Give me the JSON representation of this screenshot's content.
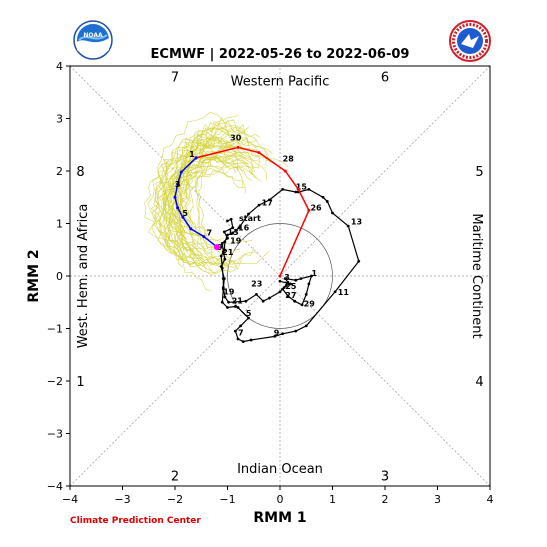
{
  "logos": {
    "left": "NOAA",
    "right": "NATIONAL WEATHER SERVICE"
  },
  "footer": "Climate Prediction Center",
  "chart_data": {
    "type": "line",
    "title": "ECMWF | 2022-05-26 to 2022-06-09",
    "xlabel": "RMM 1",
    "ylabel": "RMM 2",
    "xlim": [
      -4,
      4
    ],
    "ylim": [
      -4,
      4
    ],
    "xticks": [
      -4,
      -3,
      -2,
      -1,
      0,
      1,
      2,
      3,
      4
    ],
    "yticks": [
      -4,
      -3,
      -2,
      -1,
      0,
      1,
      2,
      3,
      4
    ],
    "grid": false,
    "unit_circle_radius": 1,
    "phase_numbers": [
      {
        "label": "1",
        "x": -3.8,
        "y": -2
      },
      {
        "label": "2",
        "x": -2,
        "y": -3.8
      },
      {
        "label": "3",
        "x": 2,
        "y": -3.8
      },
      {
        "label": "4",
        "x": 3.8,
        "y": -2
      },
      {
        "label": "5",
        "x": 3.8,
        "y": 2
      },
      {
        "label": "6",
        "x": 2,
        "y": 3.8
      },
      {
        "label": "7",
        "x": -2,
        "y": 3.8
      },
      {
        "label": "8",
        "x": -3.8,
        "y": 2
      }
    ],
    "region_labels": {
      "top": "Western Pacific",
      "bottom": "Indian Ocean",
      "left": "West. Hem. and Africa",
      "right": "Maritime Continent"
    },
    "observed": {
      "color": "#000000",
      "points": [
        [
          -1.0,
          1.05
        ],
        [
          -0.93,
          1.08
        ],
        [
          -0.9,
          0.92
        ],
        [
          -1.06,
          0.84
        ],
        [
          -1.0,
          0.72
        ],
        [
          -1.1,
          0.62
        ],
        [
          -1.08,
          0.46
        ],
        [
          -1.05,
          0.32
        ],
        [
          -1.12,
          0.18
        ],
        [
          -1.06,
          -0.05
        ],
        [
          -1.08,
          -0.25
        ],
        [
          -1.1,
          -0.5
        ],
        [
          -1.0,
          -0.6
        ],
        [
          -0.85,
          -0.58
        ],
        [
          -0.8,
          -0.6
        ],
        [
          -0.6,
          -0.8
        ],
        [
          -0.75,
          -0.95
        ],
        [
          -0.85,
          -1.05
        ],
        [
          -0.8,
          -1.2
        ],
        [
          -0.7,
          -1.25
        ],
        [
          -0.55,
          -1.22
        ],
        [
          -0.1,
          -1.15
        ],
        [
          0.05,
          -1.1
        ],
        [
          0.3,
          -1.05
        ],
        [
          0.5,
          -0.95
        ],
        [
          1.05,
          -0.3
        ],
        [
          1.5,
          0.28
        ],
        [
          1.3,
          0.95
        ],
        [
          1.0,
          1.2
        ],
        [
          0.9,
          1.42
        ],
        [
          0.82,
          1.5
        ],
        [
          0.55,
          1.65
        ],
        [
          0.35,
          1.6
        ],
        [
          0.3,
          1.6
        ],
        [
          0.05,
          1.65
        ],
        [
          -0.2,
          1.45
        ],
        [
          -0.4,
          1.35
        ],
        [
          -0.6,
          1.18
        ],
        [
          -0.78,
          0.92
        ],
        [
          -0.9,
          0.82
        ],
        [
          -1.0,
          0.78
        ],
        [
          -1.05,
          0.65
        ],
        [
          -1.06,
          0.5
        ],
        [
          -1.12,
          0.38
        ],
        [
          -1.1,
          0.15
        ],
        [
          -1.08,
          -0.05
        ],
        [
          -1.08,
          -0.22
        ],
        [
          -1.05,
          -0.4
        ],
        [
          -0.98,
          -0.5
        ],
        [
          -0.65,
          -0.48
        ],
        [
          -0.45,
          -0.35
        ],
        [
          -0.32,
          -0.48
        ],
        [
          -0.2,
          -0.42
        ],
        [
          0.0,
          -0.3
        ],
        [
          0.08,
          -0.22
        ],
        [
          0.15,
          -0.12
        ],
        [
          0.1,
          -0.05
        ],
        [
          0.3,
          -0.08
        ],
        [
          0.4,
          -0.05
        ],
        [
          0.6,
          0.0
        ],
        [
          0.55,
          -0.15
        ],
        [
          0.5,
          -0.35
        ],
        [
          0.42,
          -0.55
        ],
        [
          0.28,
          -0.48
        ],
        [
          0.15,
          -0.38
        ],
        [
          0.05,
          -0.25
        ],
        [
          0.12,
          -0.18
        ],
        [
          0.2,
          -0.15
        ],
        [
          0.0,
          -0.1
        ]
      ],
      "day_labels": [
        {
          "label": "start",
          "x": -0.78,
          "y": 1.05
        },
        {
          "label": "16",
          "x": -0.8,
          "y": 0.87
        },
        {
          "label": "17",
          "x": -0.35,
          "y": 1.34
        },
        {
          "label": "15",
          "x": 0.3,
          "y": 1.65
        },
        {
          "label": "13",
          "x": 1.35,
          "y": 0.98
        },
        {
          "label": "11",
          "x": 1.1,
          "y": -0.36
        },
        {
          "label": "9",
          "x": -0.12,
          "y": -1.13
        },
        {
          "label": "7",
          "x": -0.8,
          "y": -1.13
        },
        {
          "label": "5",
          "x": -0.65,
          "y": -0.76
        },
        {
          "label": "21",
          "x": -0.92,
          "y": -0.52
        },
        {
          "label": "19",
          "x": -1.08,
          "y": -0.35
        },
        {
          "label": "23",
          "x": -0.55,
          "y": -0.2
        },
        {
          "label": "25",
          "x": 0.1,
          "y": -0.25
        },
        {
          "label": "27",
          "x": 0.1,
          "y": -0.42
        },
        {
          "label": "29",
          "x": 0.45,
          "y": -0.58
        },
        {
          "label": "1",
          "x": 0.6,
          "y": 0.0
        },
        {
          "label": "3",
          "x": 0.08,
          "y": -0.08
        },
        {
          "label": "13",
          "x": -1.0,
          "y": 0.78
        },
        {
          "label": "19",
          "x": -0.95,
          "y": 0.62
        },
        {
          "label": "21",
          "x": -1.1,
          "y": 0.4
        },
        {
          "label": "9",
          "x": -1.2,
          "y": 0.5
        }
      ]
    },
    "forecast_mean": {
      "color": "#ff0000",
      "points": [
        [
          0.0,
          0.0
        ],
        [
          0.55,
          1.25
        ],
        [
          0.35,
          1.65
        ],
        [
          0.1,
          2.0
        ],
        [
          -0.4,
          2.35
        ],
        [
          -0.8,
          2.45
        ],
        [
          -1.6,
          2.25
        ]
      ],
      "day_labels": [
        {
          "label": "26",
          "x": 0.58,
          "y": 1.25
        },
        {
          "label": "28",
          "x": 0.05,
          "y": 2.18
        },
        {
          "label": "30",
          "x": -0.95,
          "y": 2.58
        }
      ]
    },
    "forecast_mean_next": {
      "color": "#0000ff",
      "points": [
        [
          -1.6,
          2.25
        ],
        [
          -1.88,
          1.98
        ],
        [
          -1.95,
          1.75
        ],
        [
          -2.0,
          1.5
        ],
        [
          -1.95,
          1.3
        ],
        [
          -1.85,
          1.12
        ],
        [
          -1.7,
          0.9
        ],
        [
          -1.45,
          0.75
        ],
        [
          -1.2,
          0.55
        ]
      ],
      "day_labels": [
        {
          "label": "1",
          "x": -1.73,
          "y": 2.27
        },
        {
          "label": "3",
          "x": -2.0,
          "y": 1.7
        },
        {
          "label": "5",
          "x": -1.86,
          "y": 1.14
        },
        {
          "label": "7",
          "x": -1.4,
          "y": 0.77
        }
      ]
    },
    "forecast_end_marker": {
      "color": "#ff00ff",
      "x": -1.2,
      "y": 0.55
    },
    "ensemble": {
      "color": "#d4d442",
      "member_count": 50,
      "envelope_center": [
        -1.1,
        1.4
      ],
      "envelope_radius": [
        1.05,
        1.2
      ]
    }
  }
}
